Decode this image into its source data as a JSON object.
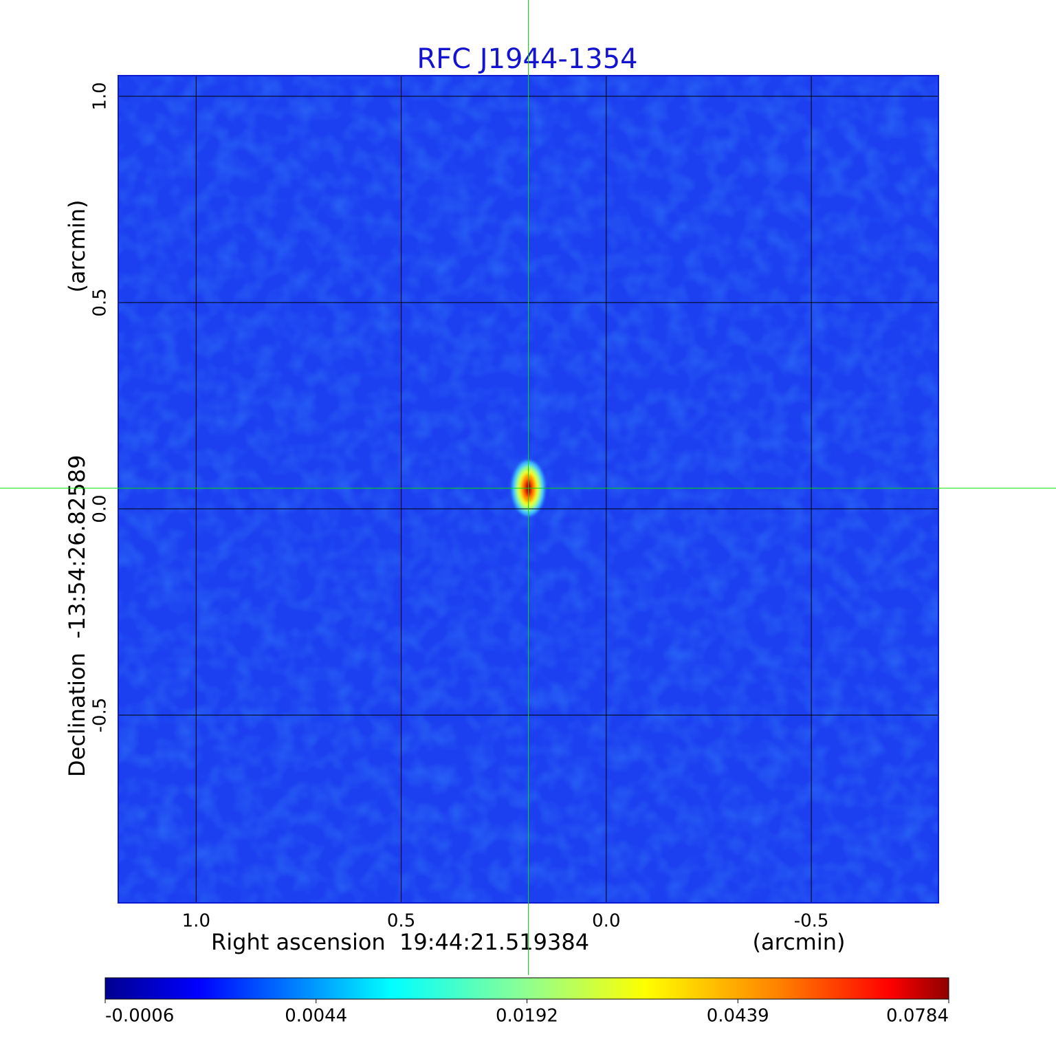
{
  "chart_data": {
    "type": "image",
    "title": "RFC J1944-1354",
    "xlabel": "Right ascension  19:44:21.519384",
    "xunit": "(arcmin)",
    "ylabel": "Declination  -13:54:26.82589",
    "yunit": "(arcmin)",
    "xlim": [
      1.19,
      -0.81
    ],
    "ylim": [
      -0.955,
      1.05
    ],
    "xticks": [
      {
        "value": 1,
        "label": "1.0"
      },
      {
        "value": 0.5,
        "label": "0.5"
      },
      {
        "value": 0,
        "label": "0.0"
      },
      {
        "value": -0.5,
        "label": "-0.5"
      }
    ],
    "yticks": [
      {
        "value": 1,
        "label": "1.0"
      },
      {
        "value": 0.5,
        "label": "0.5"
      },
      {
        "value": 0,
        "label": "0.0"
      },
      {
        "value": -0.5,
        "label": "-0.5"
      }
    ],
    "grid": true,
    "grid_color": "#000000",
    "colormap": "jet",
    "colorbar": {
      "ticks": [
        -0.0006,
        0.0044,
        0.0192,
        0.0439,
        0.0784
      ]
    },
    "source": {
      "x": 0.19,
      "y": 0.05
    },
    "crosshair": true,
    "crosshair_color": "#00e000"
  }
}
